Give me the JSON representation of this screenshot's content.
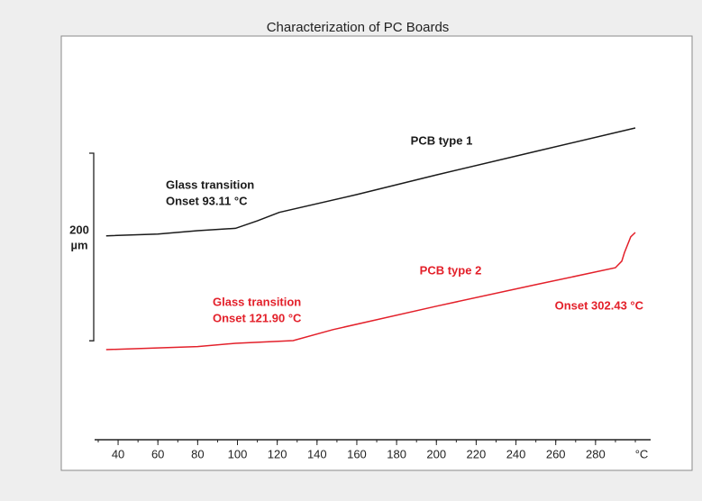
{
  "chart_data": {
    "type": "line",
    "title": "Characterization of PC Boards",
    "x_label": "°C",
    "xlim": [
      28.2,
      307.7
    ],
    "xticks": [
      40,
      60,
      80,
      100,
      120,
      140,
      160,
      180,
      200,
      220,
      240,
      260,
      280
    ],
    "ylim": [
      0,
      463
    ],
    "scale_bar": {
      "value": 200,
      "label": "200",
      "unit": "µm"
    },
    "series": [
      {
        "name": "PCB type 1",
        "color": "#1a1a1a",
        "x": [
          34,
          60,
          80,
          99,
          110,
          121,
          160,
          200,
          250,
          300
        ],
        "values": [
          250,
          252,
          255.5,
          258,
          266,
          275,
          294,
          315,
          340,
          365
        ],
        "annotations": [
          "Glass transition",
          "Onset 93.11 °C"
        ]
      },
      {
        "name": "PCB type 2",
        "color": "#e3202a",
        "x": [
          34,
          80,
          99,
          128,
          148,
          200,
          250,
          290,
          293.2,
          294.5,
          297.7,
          300
        ],
        "values": [
          128.7,
          132,
          135.4,
          138.3,
          150,
          175,
          198,
          216,
          223,
          232,
          249,
          253.6
        ],
        "annotations": [
          "Glass transition",
          "Onset 121.90 °C",
          "Onset 302.43 °C"
        ]
      }
    ]
  }
}
